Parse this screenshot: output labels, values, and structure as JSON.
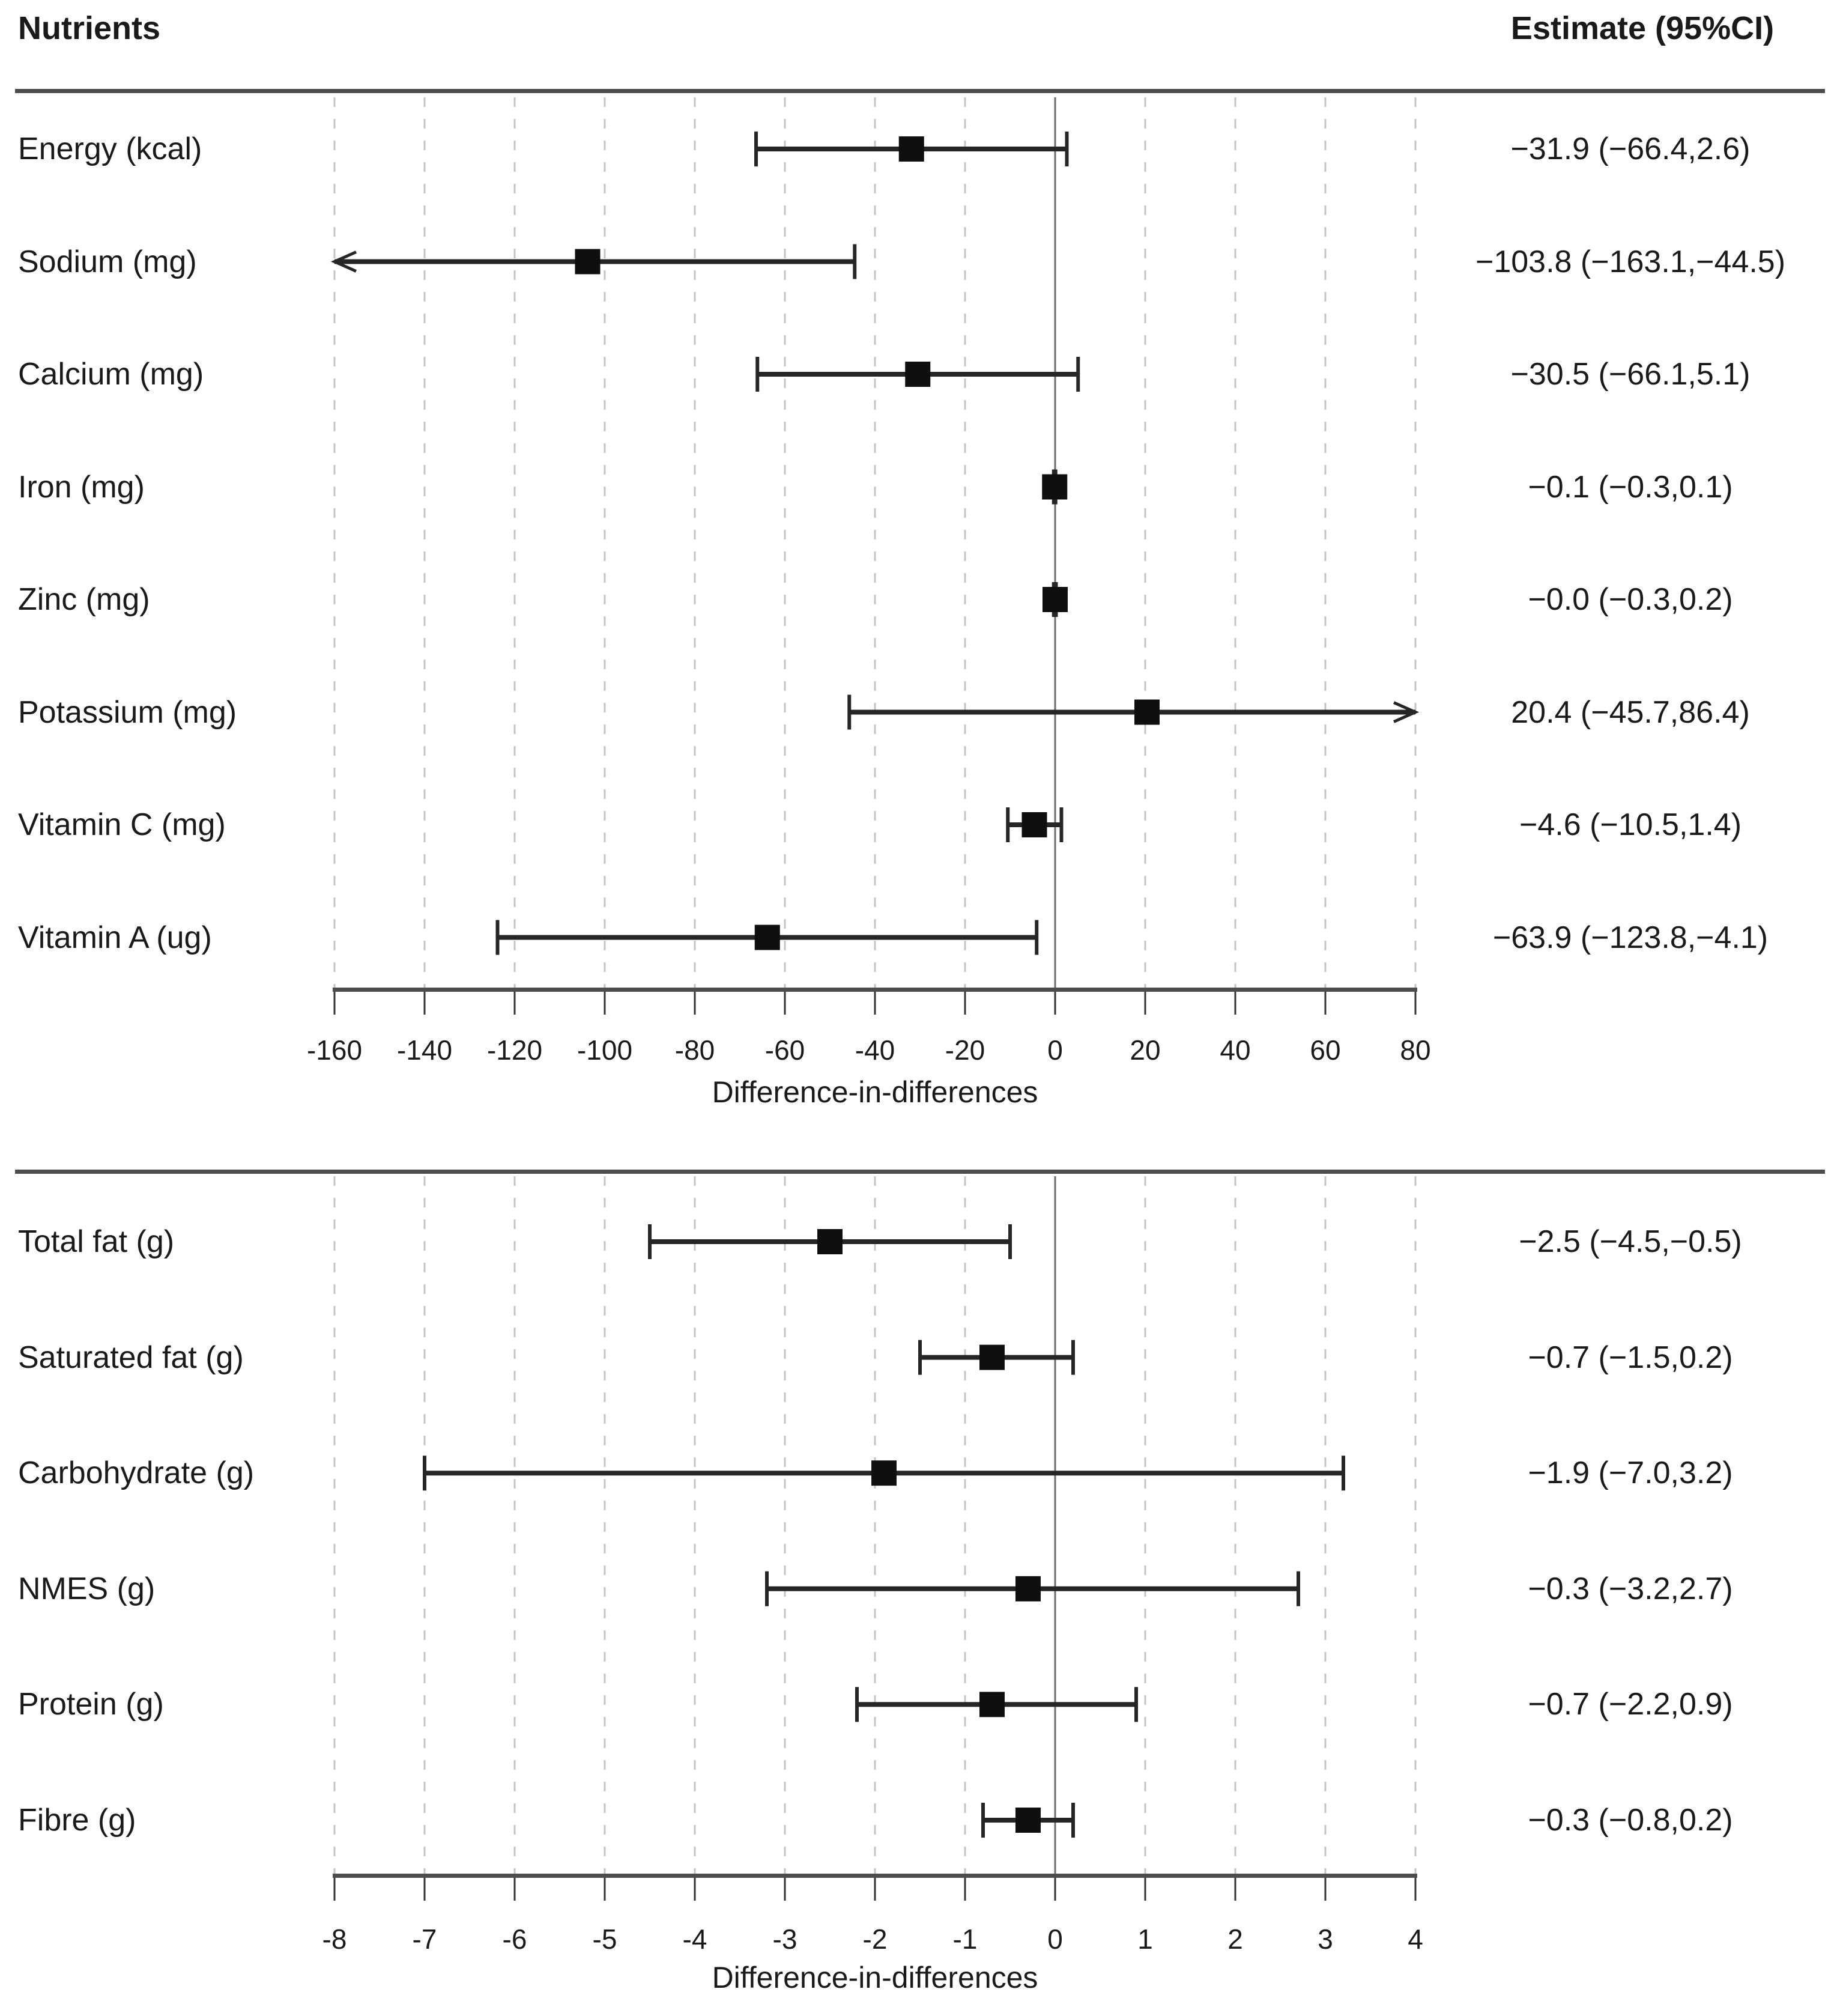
{
  "header": {
    "nutrients": "Nutrients",
    "estimate": "Estimate (95%CI)"
  },
  "chart_data": [
    {
      "type": "forest",
      "panel": "nutrients-micro",
      "xlabel": "Difference-in-differences",
      "xlim": [
        -160,
        80
      ],
      "tick_step": 20,
      "tick_labels": [
        "-160",
        "-140",
        "-120",
        "-100",
        "-80",
        "-60",
        "-40",
        "-20",
        "0",
        "20",
        "40",
        "60",
        "80"
      ],
      "grid": "dashed",
      "zero_reference_line": 0,
      "rows": [
        {
          "label": "Energy (kcal)",
          "estimate": -31.9,
          "ci_low": -66.4,
          "ci_high": 2.6,
          "estimate_text": "−31.9 (−66.4,2.6)"
        },
        {
          "label": "Sodium (mg)",
          "estimate": -103.8,
          "ci_low": -163.1,
          "ci_high": -44.5,
          "estimate_text": "−103.8 (−163.1,−44.5)"
        },
        {
          "label": "Calcium (mg)",
          "estimate": -30.5,
          "ci_low": -66.1,
          "ci_high": 5.1,
          "estimate_text": "−30.5 (−66.1,5.1)"
        },
        {
          "label": "Iron (mg)",
          "estimate": -0.1,
          "ci_low": -0.3,
          "ci_high": 0.1,
          "estimate_text": "−0.1 (−0.3,0.1)"
        },
        {
          "label": "Zinc (mg)",
          "estimate": -0.0,
          "ci_low": -0.3,
          "ci_high": 0.2,
          "estimate_text": "−0.0 (−0.3,0.2)"
        },
        {
          "label": "Potassium (mg)",
          "estimate": 20.4,
          "ci_low": -45.7,
          "ci_high": 86.4,
          "estimate_text": "20.4 (−45.7,86.4)"
        },
        {
          "label": "Vitamin C (mg)",
          "estimate": -4.6,
          "ci_low": -10.5,
          "ci_high": 1.4,
          "estimate_text": "−4.6 (−10.5,1.4)"
        },
        {
          "label": "Vitamin A (ug)",
          "estimate": -63.9,
          "ci_low": -123.8,
          "ci_high": -4.1,
          "estimate_text": "−63.9 (−123.8,−4.1)"
        }
      ]
    },
    {
      "type": "forest",
      "panel": "nutrients-macro",
      "xlabel": "Difference-in-differences",
      "xlim": [
        -8,
        4
      ],
      "tick_step": 1,
      "tick_labels": [
        "-8",
        "-7",
        "-6",
        "-5",
        "-4",
        "-3",
        "-2",
        "-1",
        "0",
        "1",
        "2",
        "3",
        "4"
      ],
      "grid": "dashed",
      "zero_reference_line": 0,
      "rows": [
        {
          "label": "Total fat (g)",
          "estimate": -2.5,
          "ci_low": -4.5,
          "ci_high": -0.5,
          "estimate_text": "−2.5 (−4.5,−0.5)"
        },
        {
          "label": "Saturated fat (g)",
          "estimate": -0.7,
          "ci_low": -1.5,
          "ci_high": 0.2,
          "estimate_text": "−0.7 (−1.5,0.2)"
        },
        {
          "label": "Carbohydrate (g)",
          "estimate": -1.9,
          "ci_low": -7.0,
          "ci_high": 3.2,
          "estimate_text": "−1.9 (−7.0,3.2)"
        },
        {
          "label": "NMES (g)",
          "estimate": -0.3,
          "ci_low": -3.2,
          "ci_high": 2.7,
          "estimate_text": "−0.3 (−3.2,2.7)"
        },
        {
          "label": "Protein (g)",
          "estimate": -0.7,
          "ci_low": -2.2,
          "ci_high": 0.9,
          "estimate_text": "−0.7 (−2.2,0.9)"
        },
        {
          "label": "Fibre (g)",
          "estimate": -0.3,
          "ci_low": -0.8,
          "ci_high": 0.2,
          "estimate_text": "−0.3 (−0.8,0.2)"
        }
      ]
    }
  ],
  "colors": {
    "text": "#1a1a1a",
    "marker": "#0f0f0f",
    "ci_line": "#262626",
    "gridline": "#c3c3c3",
    "zero_line": "#6e6e6e",
    "axis_line": "#4d4d4d",
    "background": "#ffffff"
  }
}
